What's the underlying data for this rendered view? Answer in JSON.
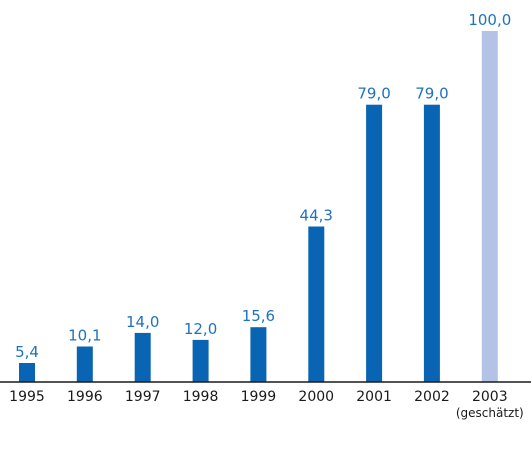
{
  "chart_data": {
    "type": "bar",
    "title": "",
    "xlabel": "",
    "ylabel": "",
    "ylim": [
      0,
      100
    ],
    "categories": [
      "1995",
      "1996",
      "1997",
      "1998",
      "1999",
      "2000",
      "2001",
      "2002",
      "2003"
    ],
    "category_notes": [
      "",
      "",
      "",
      "",
      "",
      "",
      "",
      "",
      "(geschätzt)"
    ],
    "values": [
      5.4,
      10.1,
      14.0,
      12.0,
      15.6,
      44.3,
      79.0,
      79.0,
      100.0
    ],
    "value_labels": [
      "5,4",
      "10,1",
      "14,0",
      "12,0",
      "15,6",
      "44,3",
      "79,0",
      "79,0",
      "100,0"
    ],
    "estimated": [
      false,
      false,
      false,
      false,
      false,
      false,
      false,
      false,
      true
    ],
    "grid": false,
    "legend": "none",
    "colors": {
      "bar": "#0a64b4",
      "bar_estimated": "#b3c3e6",
      "value_label": "#1f72bf",
      "axis": "#1a1a1a"
    }
  }
}
